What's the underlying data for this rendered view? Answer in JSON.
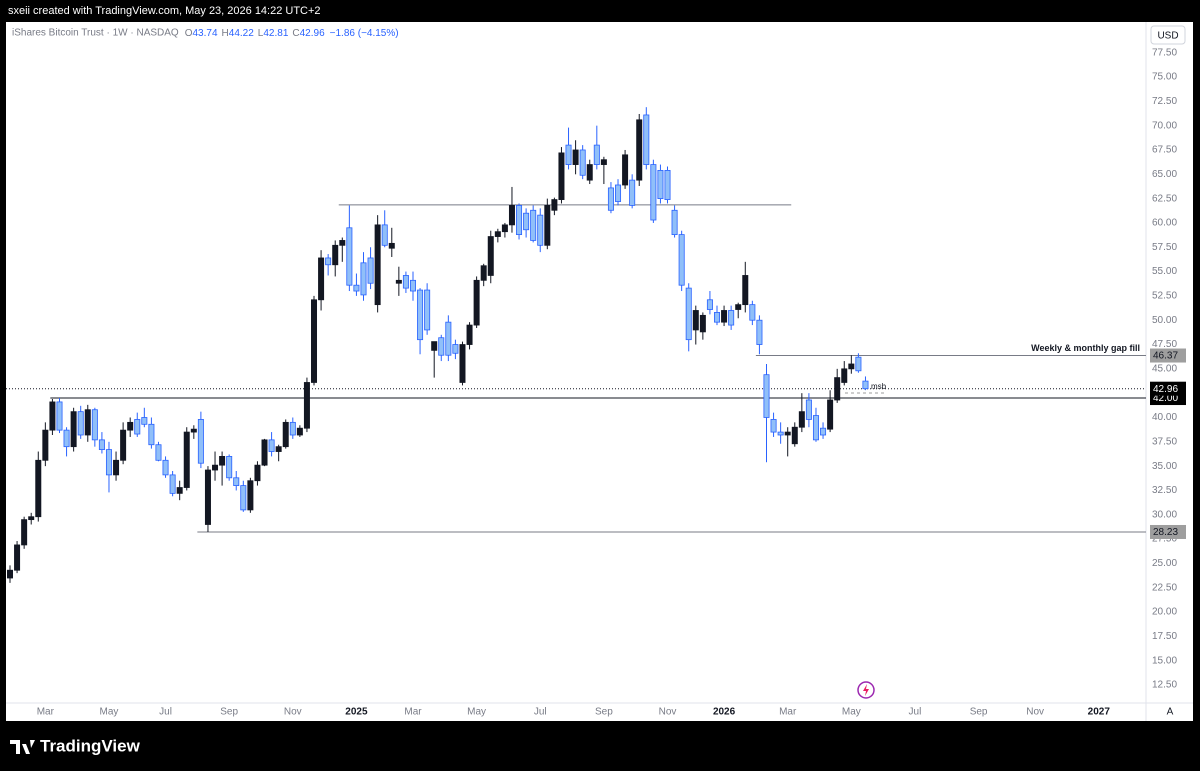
{
  "banner": "sxeii created with TradingView.com, May 23, 2026 14:22 UTC+2",
  "brand": "TradingView",
  "chart_data": {
    "type": "candlestick",
    "header": {
      "title": "iShares Bitcoin Trust · 1W · NASDAQ",
      "prefixes": [
        "O",
        "H",
        "L",
        "C"
      ],
      "change": "−1.86 (−4.15%)"
    },
    "currency": "USD",
    "scale_mode": "A",
    "up_color": "#131722",
    "down_color": "#90bff9",
    "down_border": "#2962ff",
    "categories": [
      null,
      null,
      null,
      null,
      null,
      "Mar",
      null,
      null,
      null,
      null,
      null,
      null,
      null,
      null,
      "May",
      null,
      null,
      null,
      null,
      null,
      null,
      null,
      "Jul",
      null,
      null,
      null,
      null,
      null,
      null,
      null,
      null,
      "Sep",
      null,
      null,
      null,
      null,
      null,
      null,
      null,
      null,
      "Nov",
      null,
      null,
      null,
      null,
      null,
      null,
      null,
      null,
      "2025",
      null,
      null,
      null,
      null,
      null,
      null,
      null,
      "Mar",
      null,
      null,
      null,
      null,
      null,
      null,
      null,
      null,
      "May",
      null,
      null,
      null,
      null,
      null,
      null,
      null,
      null,
      "Jul",
      null,
      null,
      null,
      null,
      null,
      null,
      null,
      null,
      "Sep",
      null,
      null,
      null,
      null,
      null,
      null,
      null,
      null,
      "Nov",
      null,
      null,
      null,
      null,
      null,
      null,
      null,
      "2026",
      null,
      null,
      null,
      null,
      null,
      null,
      null,
      null,
      "Mar",
      null,
      null,
      null,
      null,
      null,
      null,
      null,
      null,
      "May",
      null,
      null,
      null,
      null,
      null,
      null,
      null,
      null,
      "Jul",
      null,
      null,
      null,
      null,
      null,
      null,
      null,
      null,
      "Sep",
      null,
      null,
      null,
      null,
      null,
      null,
      null,
      "Nov",
      null,
      null,
      null,
      null,
      null,
      null,
      null,
      null,
      "2027",
      null,
      null,
      null,
      null,
      null
    ],
    "open": [
      23.5,
      24.3,
      26.9,
      29.5,
      29.8,
      35.6,
      38.7,
      41.6,
      38.7,
      37.0,
      40.6,
      38.2,
      40.8,
      37.7,
      36.7,
      34.1,
      35.6,
      38.7,
      39.8,
      40.0,
      39.3,
      37.2,
      35.6,
      34.1,
      32.2,
      32.8,
      38.5,
      39.8,
      29.0,
      34.6,
      35.1,
      36.0,
      33.8,
      33.0,
      30.5,
      33.5,
      35.1,
      37.7,
      36.5,
      37.0,
      39.5,
      38.2,
      38.9,
      43.6,
      52.1,
      56.4,
      55.7,
      57.7,
      59.5,
      53.6,
      55.9,
      56.4,
      51.6,
      59.8,
      57.4,
      53.8,
      54.6,
      54.1,
      53.1,
      53.1,
      46.9,
      48.2,
      49.8,
      47.5,
      43.6,
      47.5,
      49.5,
      54.1,
      54.6,
      58.6,
      59.1,
      59.8,
      61.8,
      61.0,
      61.3,
      60.8,
      57.7,
      61.3,
      62.4,
      68.0,
      66.0,
      67.5,
      64.4,
      68.0,
      66.0,
      63.6,
      63.9,
      63.9,
      64.4,
      64.4,
      71.1,
      66.0,
      65.4,
      65.4,
      61.3,
      58.8,
      53.3,
      49.0,
      48.8,
      52.1,
      50.8,
      49.8,
      51.0,
      51.1,
      51.6,
      51.6,
      50.0,
      44.4,
      39.8,
      38.5,
      38.2,
      37.3,
      39.0,
      41.8,
      40.2,
      38.9,
      38.8,
      41.8,
      43.6,
      45.0,
      46.2,
      43.74,
      null,
      null,
      null,
      null,
      null,
      null,
      null,
      null,
      null,
      null,
      null,
      null,
      null,
      null,
      null,
      null,
      null,
      null,
      null,
      null,
      null,
      null,
      null,
      null,
      null,
      null,
      null,
      null,
      null,
      null,
      null,
      null,
      null,
      null,
      null,
      null,
      null,
      null
    ],
    "high": [
      24.8,
      27.3,
      29.8,
      30.2,
      36.5,
      39.5,
      41.9,
      42.0,
      39.0,
      41.0,
      41.2,
      41.3,
      41.0,
      38.5,
      37.5,
      36.5,
      39.5,
      40.0,
      40.5,
      41.0,
      40.0,
      37.5,
      36.0,
      34.5,
      33.5,
      39.0,
      39.2,
      40.6,
      35.0,
      36.5,
      36.5,
      36.2,
      34.5,
      33.5,
      33.8,
      35.5,
      37.8,
      38.5,
      37.2,
      39.8,
      40.0,
      39.2,
      44.1,
      52.5,
      57.2,
      56.8,
      58.2,
      58.5,
      61.8,
      54.8,
      57.0,
      57.5,
      60.8,
      61.3,
      59.5,
      55.5,
      55.0,
      55.0,
      53.3,
      53.8,
      47.8,
      48.5,
      50.5,
      48.0,
      47.8,
      49.8,
      54.5,
      55.8,
      59.2,
      59.4,
      60.0,
      63.7,
      62.0,
      61.5,
      61.8,
      61.5,
      62.5,
      62.6,
      67.8,
      69.8,
      68.5,
      68.0,
      66.5,
      70.0,
      66.8,
      64.2,
      64.5,
      67.5,
      65.0,
      71.2,
      71.9,
      66.5,
      66.0,
      65.8,
      61.8,
      59.2,
      53.8,
      51.5,
      50.8,
      53.0,
      51.5,
      51.5,
      51.5,
      51.8,
      56.0,
      52.0,
      50.5,
      45.5,
      40.5,
      39.5,
      39.0,
      39.5,
      42.5,
      42.5,
      41.0,
      39.5,
      42.8,
      45.0,
      45.8,
      46.4,
      46.6,
      44.22,
      null,
      null,
      null,
      null,
      null,
      null,
      null,
      null,
      null,
      null,
      null,
      null,
      null,
      null,
      null,
      null,
      null,
      null,
      null,
      null,
      null,
      null,
      null,
      null,
      null,
      null,
      null,
      null,
      null,
      null,
      null,
      null,
      null,
      null,
      null,
      null,
      null,
      null
    ],
    "low": [
      23.0,
      24.0,
      26.5,
      29.0,
      29.3,
      35.0,
      38.2,
      38.4,
      36.0,
      36.5,
      37.8,
      37.5,
      37.0,
      36.3,
      32.3,
      33.5,
      35.2,
      38.0,
      38.0,
      39.0,
      36.8,
      35.5,
      33.8,
      31.9,
      31.5,
      32.5,
      37.8,
      34.8,
      28.23,
      33.5,
      33.0,
      33.5,
      32.5,
      30.3,
      30.2,
      33.0,
      35.0,
      36.0,
      35.5,
      36.8,
      37.8,
      38.0,
      38.5,
      43.3,
      51.0,
      54.6,
      54.5,
      56.0,
      53.0,
      52.5,
      52.0,
      53.2,
      50.8,
      57.5,
      56.5,
      52.5,
      52.8,
      52.0,
      46.5,
      48.5,
      44.1,
      45.8,
      45.8,
      46.0,
      43.3,
      47.0,
      49.2,
      53.5,
      53.8,
      58.0,
      58.5,
      59.0,
      58.3,
      58.5,
      58.0,
      57.0,
      57.3,
      60.8,
      62.0,
      65.5,
      65.0,
      64.5,
      64.0,
      65.5,
      64.0,
      61.0,
      61.8,
      63.5,
      61.5,
      63.8,
      65.5,
      60.0,
      62.0,
      62.0,
      58.5,
      53.0,
      46.8,
      47.5,
      48.0,
      50.6,
      49.5,
      49.4,
      49.0,
      50.2,
      50.8,
      49.5,
      46.5,
      35.4,
      38.0,
      37.3,
      36.0,
      37.0,
      38.5,
      39.0,
      37.5,
      37.8,
      38.5,
      41.5,
      43.3,
      44.5,
      44.6,
      42.81,
      null,
      null,
      null,
      null,
      null,
      null,
      null,
      null,
      null,
      null,
      null,
      null,
      null,
      null,
      null,
      null,
      null,
      null,
      null,
      null,
      null,
      null,
      null,
      null,
      null,
      null,
      null,
      null,
      null,
      null,
      null,
      null,
      null,
      null,
      null,
      null,
      null,
      null
    ],
    "close": [
      24.3,
      26.9,
      29.5,
      29.8,
      35.6,
      38.7,
      41.6,
      38.7,
      37.0,
      40.6,
      38.2,
      40.8,
      37.7,
      36.7,
      34.1,
      35.6,
      38.7,
      39.5,
      38.3,
      39.3,
      37.2,
      35.6,
      34.1,
      32.2,
      32.8,
      38.5,
      38.8,
      35.3,
      34.6,
      35.1,
      36.0,
      33.8,
      33.0,
      30.5,
      33.5,
      35.1,
      37.7,
      36.5,
      37.0,
      39.5,
      38.2,
      38.9,
      43.6,
      52.1,
      56.4,
      55.7,
      57.7,
      58.2,
      53.6,
      53.0,
      52.6,
      53.8,
      59.8,
      57.7,
      57.9,
      54.1,
      53.3,
      53.0,
      48.0,
      49.0,
      47.8,
      46.4,
      46.4,
      46.6,
      47.5,
      49.5,
      54.1,
      55.6,
      58.6,
      59.1,
      59.8,
      61.8,
      58.8,
      59.3,
      58.2,
      57.7,
      61.8,
      62.4,
      67.2,
      66.0,
      67.5,
      64.9,
      66.0,
      66.0,
      66.5,
      61.3,
      62.2,
      67.0,
      61.8,
      70.6,
      66.0,
      60.3,
      62.5,
      62.4,
      58.8,
      53.6,
      48.0,
      51.0,
      50.5,
      51.1,
      49.8,
      51.0,
      49.5,
      51.6,
      54.6,
      50.0,
      47.5,
      40.0,
      38.5,
      38.2,
      38.5,
      39.0,
      40.6,
      39.8,
      37.7,
      38.2,
      41.8,
      44.1,
      45.0,
      45.5,
      44.8,
      42.96,
      null,
      null,
      null,
      null,
      null,
      null,
      null,
      null,
      null,
      null,
      null,
      null,
      null,
      null,
      null,
      null,
      null,
      null,
      null,
      null,
      null,
      null,
      null,
      null,
      null,
      null,
      null,
      null,
      null,
      null,
      null,
      null,
      null,
      null,
      null,
      null,
      null,
      null
    ],
    "ylim": [
      10.65,
      80.45
    ],
    "yticks": [
      {
        "value": 12.5,
        "label": "12.50"
      },
      {
        "value": 15,
        "label": "15.00"
      },
      {
        "value": 17.5,
        "label": "17.50"
      },
      {
        "value": 20,
        "label": "20.00"
      },
      {
        "value": 22.5,
        "label": "22.50"
      },
      {
        "value": 25,
        "label": "25.00"
      },
      {
        "value": 27.5,
        "label": "27.50"
      },
      {
        "value": 30,
        "label": "30.00"
      },
      {
        "value": 32.5,
        "label": "32.50"
      },
      {
        "value": 35,
        "label": "35.00"
      },
      {
        "value": 37.5,
        "label": "37.50"
      },
      {
        "value": 40,
        "label": "40.00"
      },
      {
        "value": 42.5,
        "label": "42.50"
      },
      {
        "value": 45,
        "label": "45.00"
      },
      {
        "value": 47.5,
        "label": "47.50"
      },
      {
        "value": 50,
        "label": "50.00"
      },
      {
        "value": 52.5,
        "label": "52.50"
      },
      {
        "value": 55,
        "label": "55.00"
      },
      {
        "value": 57.5,
        "label": "57.50"
      },
      {
        "value": 60,
        "label": "60.00"
      },
      {
        "value": 62.5,
        "label": "62.50"
      },
      {
        "value": 65,
        "label": "65.00"
      },
      {
        "value": 67.5,
        "label": "67.50"
      },
      {
        "value": 70,
        "label": "70.00"
      },
      {
        "value": 72.5,
        "label": "72.50"
      },
      {
        "value": 75,
        "label": "75.00"
      },
      {
        "value": 77.5,
        "label": "77.50"
      }
    ],
    "grid": false,
    "levels": {
      "values": [
        46.37,
        42,
        28.23
      ],
      "value_labels": [
        "46.37",
        "42.00",
        "28.23"
      ],
      "tag_colors": [
        "#9e9e9e",
        "#000000",
        "#9e9e9e"
      ]
    },
    "resistance": 61.85,
    "annotations": {
      "gap_fill": "Weekly & monthly gap fill",
      "msb": "msb"
    }
  }
}
